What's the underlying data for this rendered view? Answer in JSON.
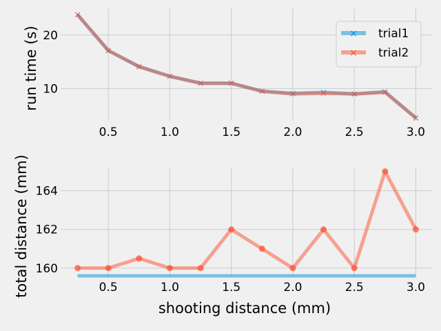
{
  "chart_data": [
    {
      "type": "line",
      "xlabel": "",
      "ylabel": "run time (s)",
      "x": [
        0.25,
        0.5,
        0.75,
        1.0,
        1.25,
        1.5,
        1.75,
        2.0,
        2.25,
        2.5,
        2.75,
        3.0
      ],
      "xlim": [
        0.1125,
        3.1375
      ],
      "ylim": [
        4.0,
        25.0
      ],
      "xticks": [
        "0.5",
        "1.0",
        "1.5",
        "2.0",
        "2.5",
        "3.0"
      ],
      "yticks": [
        "10",
        "20"
      ],
      "grid": true,
      "legend": "top-right",
      "series": [
        {
          "name": "trial1",
          "marker": "x",
          "color": "#008fd5",
          "values": [
            23.8,
            17.1,
            14.1,
            12.3,
            11.0,
            11.0,
            9.5,
            9.1,
            9.3,
            9.0,
            9.4,
            4.5
          ]
        },
        {
          "name": "trial2",
          "marker": "x",
          "color": "#fc4f30",
          "values": [
            23.8,
            17.1,
            14.1,
            12.3,
            11.0,
            11.0,
            9.5,
            9.0,
            9.1,
            9.0,
            9.3,
            4.5
          ]
        }
      ]
    },
    {
      "type": "line",
      "xlabel": "shooting distance (mm)",
      "ylabel": "total distance (mm)",
      "x": [
        0.25,
        0.5,
        0.75,
        1.0,
        1.25,
        1.5,
        1.75,
        2.0,
        2.25,
        2.5,
        2.75,
        3.0
      ],
      "xlim": [
        0.1125,
        3.1375
      ],
      "ylim": [
        159.6,
        165.2
      ],
      "xticks": [
        "0.5",
        "1.0",
        "1.5",
        "2.0",
        "2.5",
        "3.0"
      ],
      "yticks": [
        "160",
        "162",
        "164"
      ],
      "grid": true,
      "series": [
        {
          "marker": "",
          "color": "#008fd5",
          "values": [
            159.6,
            159.6,
            159.6,
            159.6,
            159.6,
            159.6,
            159.6,
            159.6,
            159.6,
            159.6,
            159.6,
            159.6
          ]
        },
        {
          "marker": "o",
          "color": "#fc4f30",
          "values": [
            160,
            160,
            160.5,
            160,
            160,
            162,
            161,
            160,
            162,
            160,
            165,
            162
          ]
        }
      ]
    }
  ]
}
